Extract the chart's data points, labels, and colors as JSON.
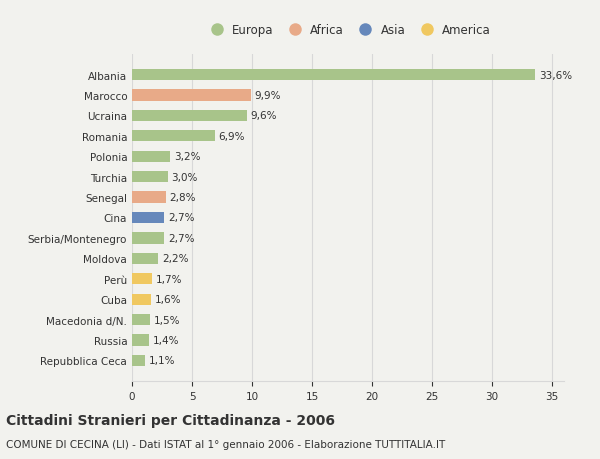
{
  "categories": [
    "Albania",
    "Marocco",
    "Ucraina",
    "Romania",
    "Polonia",
    "Turchia",
    "Senegal",
    "Cina",
    "Serbia/Montenegro",
    "Moldova",
    "Perù",
    "Cuba",
    "Macedonia d/N.",
    "Russia",
    "Repubblica Ceca"
  ],
  "values": [
    33.6,
    9.9,
    9.6,
    6.9,
    3.2,
    3.0,
    2.8,
    2.7,
    2.7,
    2.2,
    1.7,
    1.6,
    1.5,
    1.4,
    1.1
  ],
  "labels": [
    "33,6%",
    "9,9%",
    "9,6%",
    "6,9%",
    "3,2%",
    "3,0%",
    "2,8%",
    "2,7%",
    "2,7%",
    "2,2%",
    "1,7%",
    "1,6%",
    "1,5%",
    "1,4%",
    "1,1%"
  ],
  "continents": [
    "Europa",
    "Africa",
    "Europa",
    "Europa",
    "Europa",
    "Europa",
    "Africa",
    "Asia",
    "Europa",
    "Europa",
    "America",
    "America",
    "Europa",
    "Europa",
    "Europa"
  ],
  "colors": {
    "Europa": "#a8c48a",
    "Africa": "#e8aa88",
    "Asia": "#6688bb",
    "America": "#f0c860"
  },
  "xlim": [
    0,
    36
  ],
  "xticks": [
    0,
    5,
    10,
    15,
    20,
    25,
    30,
    35
  ],
  "title": "Cittadini Stranieri per Cittadinanza - 2006",
  "subtitle": "COMUNE DI CECINA (LI) - Dati ISTAT al 1° gennaio 2006 - Elaborazione TUTTITALIA.IT",
  "background_color": "#f2f2ee",
  "bar_height": 0.55,
  "grid_color": "#d8d8d8",
  "text_color": "#333333",
  "label_fontsize": 7.5,
  "tick_fontsize": 7.5,
  "title_fontsize": 10,
  "subtitle_fontsize": 7.5
}
